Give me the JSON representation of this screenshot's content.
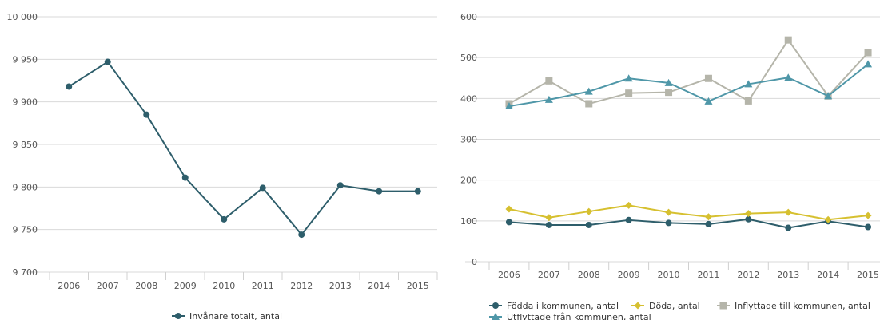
{
  "chart_data": [
    {
      "type": "line",
      "categories": [
        "2006",
        "2007",
        "2008",
        "2009",
        "2010",
        "2011",
        "2012",
        "2013",
        "2014",
        "2015"
      ],
      "ylim": [
        9700,
        10000
      ],
      "yticks": [
        9700,
        9750,
        9800,
        9850,
        9900,
        9950,
        10000
      ],
      "ytick_labels": [
        "9 700",
        "9 750",
        "9 800",
        "9 850",
        "9 900",
        "9 950",
        "10 000"
      ],
      "grid": true,
      "legend_position": "bottom",
      "series": [
        {
          "name": "Invånare totalt, antal",
          "color": "#2e5e6b",
          "marker": "circle",
          "values": [
            9918,
            9947,
            9885,
            9811,
            9762,
            9799,
            9744,
            9802,
            9795,
            9795
          ]
        }
      ]
    },
    {
      "type": "line",
      "categories": [
        "2006",
        "2007",
        "2008",
        "2009",
        "2010",
        "2011",
        "2012",
        "2013",
        "2014",
        "2015"
      ],
      "ylim": [
        0,
        600
      ],
      "yticks": [
        0,
        100,
        200,
        300,
        400,
        500,
        600
      ],
      "ytick_labels": [
        "0",
        "100",
        "200",
        "300",
        "400",
        "500",
        "600"
      ],
      "grid": true,
      "legend_position": "bottom",
      "series": [
        {
          "name": "Födda i kommunen, antal",
          "color": "#2e5e6b",
          "marker": "circle",
          "values": [
            97,
            90,
            90,
            102,
            95,
            92,
            104,
            83,
            99,
            85
          ]
        },
        {
          "name": "Döda, antal",
          "color": "#d6c030",
          "marker": "diamond",
          "values": [
            129,
            108,
            123,
            138,
            121,
            110,
            118,
            121,
            103,
            113
          ]
        },
        {
          "name": "Inflyttade till kommunen, antal",
          "color": "#b5b5aa",
          "marker": "square",
          "values": [
            387,
            443,
            387,
            413,
            415,
            449,
            394,
            543,
            406,
            512
          ]
        },
        {
          "name": "Utflyttade från kommunen, antal",
          "color": "#4f97a8",
          "marker": "triangle",
          "values": [
            381,
            397,
            417,
            449,
            438,
            393,
            435,
            451,
            406,
            484
          ]
        }
      ]
    }
  ]
}
